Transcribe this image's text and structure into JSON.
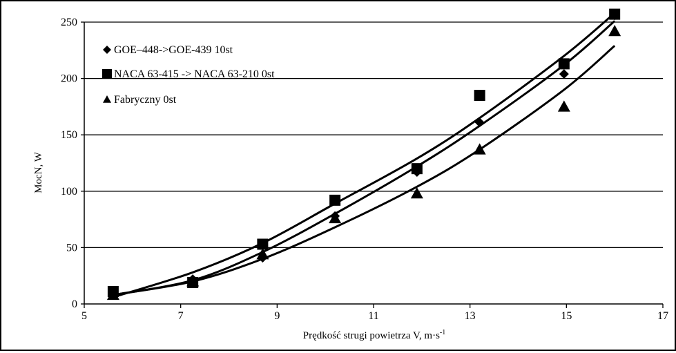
{
  "chart_data": {
    "type": "scatter",
    "title": "",
    "xlabel": "Prędkość strugi powietrza V, m·s",
    "xlabel_sup": "-1",
    "ylabel": "MocN, W",
    "xlim": [
      5,
      17
    ],
    "ylim": [
      0,
      250
    ],
    "x_ticks": [
      5,
      7,
      9,
      11,
      13,
      15,
      17
    ],
    "y_ticks": [
      0,
      50,
      100,
      150,
      200,
      250
    ],
    "grid": "horizontal",
    "legend_position": "top-left",
    "series": [
      {
        "name": "GOE–448->GOE-439 10st",
        "marker": "diamond",
        "color": "#000000",
        "points": [
          [
            5.6,
            9
          ],
          [
            7.25,
            22
          ],
          [
            8.7,
            41
          ],
          [
            10.2,
            78
          ],
          [
            11.9,
            117
          ],
          [
            13.2,
            161
          ],
          [
            14.95,
            204
          ],
          [
            16.0,
            256
          ]
        ],
        "trend": [
          [
            5.6,
            8
          ],
          [
            7.25,
            21
          ],
          [
            8.7,
            46
          ],
          [
            10.2,
            80
          ],
          [
            11.9,
            122
          ],
          [
            13.2,
            158
          ],
          [
            14.95,
            212
          ],
          [
            16.0,
            251
          ]
        ]
      },
      {
        "name": "NACA 63-415 -> NACA 63-210 0st",
        "marker": "square",
        "color": "#000000",
        "points": [
          [
            5.6,
            11
          ],
          [
            7.25,
            19
          ],
          [
            8.7,
            53
          ],
          [
            10.2,
            92
          ],
          [
            11.9,
            120
          ],
          [
            13.2,
            185
          ],
          [
            14.95,
            213
          ],
          [
            16.0,
            257
          ]
        ],
        "trend": [
          [
            5.6,
            6
          ],
          [
            7.25,
            28
          ],
          [
            8.7,
            54
          ],
          [
            10.2,
            89
          ],
          [
            11.9,
            129
          ],
          [
            13.2,
            165
          ],
          [
            14.95,
            220
          ],
          [
            16.0,
            258
          ]
        ]
      },
      {
        "name": "Fabryczny 0st",
        "marker": "triangle",
        "color": "#000000",
        "points": [
          [
            5.6,
            8
          ],
          [
            7.25,
            20
          ],
          [
            8.7,
            44
          ],
          [
            10.2,
            76
          ],
          [
            11.9,
            98
          ],
          [
            13.2,
            137
          ],
          [
            14.95,
            175
          ],
          [
            16.0,
            242
          ]
        ],
        "trend": [
          [
            5.6,
            8
          ],
          [
            7.25,
            20
          ],
          [
            8.7,
            40
          ],
          [
            10.2,
            68
          ],
          [
            11.9,
            104
          ],
          [
            13.2,
            137
          ],
          [
            14.95,
            190
          ],
          [
            16.0,
            229
          ]
        ]
      }
    ]
  }
}
